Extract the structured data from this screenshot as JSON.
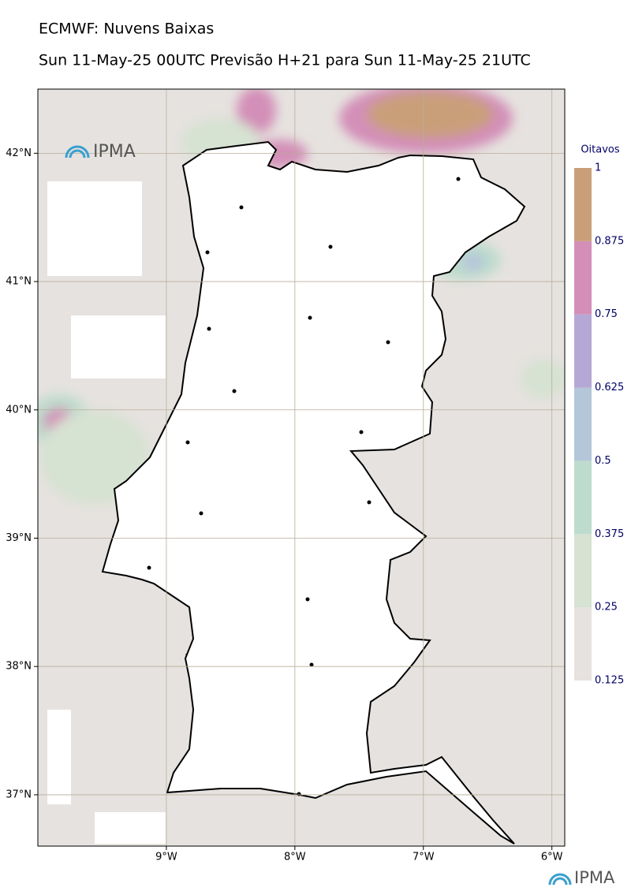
{
  "header": {
    "title": "ECMWF: Nuvens Baixas",
    "subtitle": "Sun 11-May-25 00UTC Previsão H+21 para Sun 11-May-25 21UTC"
  },
  "map": {
    "xlim": [
      -10,
      -5.9
    ],
    "ylim": [
      36.6,
      42.5
    ],
    "xticks": [
      {
        "value": -9,
        "label": "9°W"
      },
      {
        "value": -8,
        "label": "8°W"
      },
      {
        "value": -7,
        "label": "7°W"
      },
      {
        "value": -6,
        "label": "6°W"
      }
    ],
    "yticks": [
      {
        "value": 42,
        "label": "42°N"
      },
      {
        "value": 41,
        "label": "41°N"
      },
      {
        "value": 40,
        "label": "40°N"
      },
      {
        "value": 39,
        "label": "39°N"
      },
      {
        "value": 38,
        "label": "38°N"
      },
      {
        "value": 37,
        "label": "37°N"
      }
    ],
    "logo": "IPMA"
  },
  "colorbar": {
    "title": "Oitavos",
    "levels": [
      0.125,
      0.25,
      0.375,
      0.5,
      0.625,
      0.75,
      0.875,
      1
    ],
    "colors": [
      "#e6e2df",
      "#d6e2d2",
      "#bedccd",
      "#b4c6d9",
      "#b6a8d6",
      "#d38fb8",
      "#c99f7a"
    ]
  },
  "footer": {
    "logo": "IPMA"
  }
}
